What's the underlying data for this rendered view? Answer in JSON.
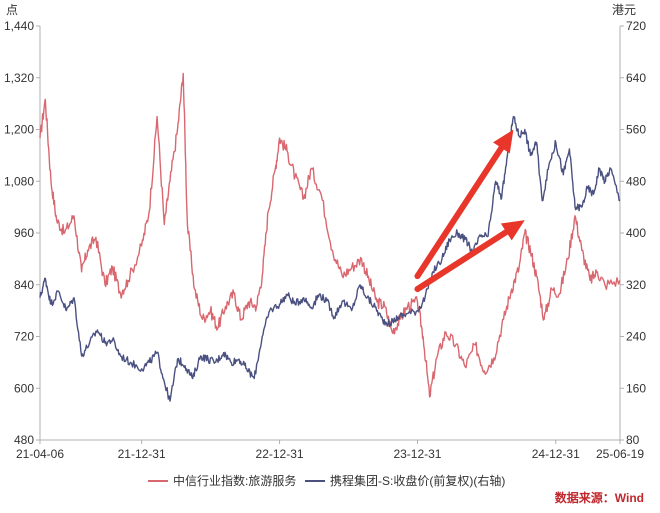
{
  "chart_data": {
    "type": "line",
    "left_axis": {
      "unit": "点",
      "ylim": [
        480,
        1440
      ],
      "ticks": [
        "480",
        "600",
        "720",
        "840",
        "960",
        "1,080",
        "1,200",
        "1,320",
        "1,440"
      ]
    },
    "right_axis": {
      "unit": "港元",
      "ylim": [
        80,
        720
      ],
      "ticks": [
        "80",
        "160",
        "240",
        "320",
        "400",
        "480",
        "560",
        "640",
        "720"
      ]
    },
    "x_ticks": [
      "21-04-06",
      "21-12-31",
      "22-12-31",
      "23-12-31",
      "24-12-31",
      "25-06-19"
    ],
    "x_tick_dates": [
      "2021-04-06",
      "2021-12-31",
      "2022-12-31",
      "2023-12-31",
      "2024-12-31",
      "2025-06-19"
    ],
    "series": [
      {
        "name": "中信行业指数:旅游服务",
        "axis": "left",
        "color": "#d9676f",
        "points": [
          [
            "2021-04-06",
            1180
          ],
          [
            "2021-04-20",
            1270
          ],
          [
            "2021-05-05",
            1080
          ],
          [
            "2021-05-20",
            990
          ],
          [
            "2021-06-10",
            960
          ],
          [
            "2021-07-05",
            1000
          ],
          [
            "2021-07-25",
            870
          ],
          [
            "2021-08-10",
            920
          ],
          [
            "2021-09-01",
            950
          ],
          [
            "2021-09-25",
            840
          ],
          [
            "2021-10-15",
            880
          ],
          [
            "2021-11-05",
            820
          ],
          [
            "2021-11-25",
            850
          ],
          [
            "2021-12-31",
            930
          ],
          [
            "2022-01-20",
            1010
          ],
          [
            "2022-02-10",
            1230
          ],
          [
            "2022-03-01",
            980
          ],
          [
            "2022-03-16",
            1080
          ],
          [
            "2022-04-05",
            1200
          ],
          [
            "2022-04-20",
            1330
          ],
          [
            "2022-05-01",
            980
          ],
          [
            "2022-05-20",
            830
          ],
          [
            "2022-06-10",
            760
          ],
          [
            "2022-07-01",
            780
          ],
          [
            "2022-07-20",
            740
          ],
          [
            "2022-08-10",
            790
          ],
          [
            "2022-09-01",
            820
          ],
          [
            "2022-09-20",
            760
          ],
          [
            "2022-10-10",
            800
          ],
          [
            "2022-10-31",
            790
          ],
          [
            "2022-11-15",
            860
          ],
          [
            "2022-12-01",
            1010
          ],
          [
            "2022-12-20",
            1110
          ],
          [
            "2022-12-31",
            1180
          ],
          [
            "2023-01-20",
            1150
          ],
          [
            "2023-02-10",
            1090
          ],
          [
            "2023-03-05",
            1040
          ],
          [
            "2023-03-25",
            1110
          ],
          [
            "2023-04-20",
            1050
          ],
          [
            "2023-05-20",
            920
          ],
          [
            "2023-06-15",
            860
          ],
          [
            "2023-07-10",
            880
          ],
          [
            "2023-08-05",
            900
          ],
          [
            "2023-08-25",
            850
          ],
          [
            "2023-09-15",
            800
          ],
          [
            "2023-10-05",
            790
          ],
          [
            "2023-10-25",
            730
          ],
          [
            "2023-11-15",
            760
          ],
          [
            "2023-12-05",
            790
          ],
          [
            "2023-12-31",
            800
          ],
          [
            "2024-01-15",
            720
          ],
          [
            "2024-02-01",
            580
          ],
          [
            "2024-02-20",
            670
          ],
          [
            "2024-03-15",
            730
          ],
          [
            "2024-04-10",
            700
          ],
          [
            "2024-05-05",
            650
          ],
          [
            "2024-06-01",
            700
          ],
          [
            "2024-06-25",
            640
          ],
          [
            "2024-07-20",
            670
          ],
          [
            "2024-08-15",
            760
          ],
          [
            "2024-09-05",
            830
          ],
          [
            "2024-09-25",
            880
          ],
          [
            "2024-10-10",
            960
          ],
          [
            "2024-10-25",
            920
          ],
          [
            "2024-11-10",
            860
          ],
          [
            "2024-11-30",
            760
          ],
          [
            "2024-12-20",
            830
          ],
          [
            "2025-01-10",
            820
          ],
          [
            "2025-02-01",
            900
          ],
          [
            "2025-02-20",
            1000
          ],
          [
            "2025-03-10",
            920
          ],
          [
            "2025-04-01",
            850
          ],
          [
            "2025-04-20",
            870
          ],
          [
            "2025-05-10",
            840
          ],
          [
            "2025-06-19",
            850
          ]
        ]
      },
      {
        "name": "携程集团-S:收盘价(前复权)(右轴)",
        "axis": "right",
        "color": "#4a5080",
        "points": [
          [
            "2021-04-06",
            300
          ],
          [
            "2021-04-20",
            330
          ],
          [
            "2021-05-05",
            290
          ],
          [
            "2021-05-25",
            310
          ],
          [
            "2021-06-15",
            280
          ],
          [
            "2021-07-05",
            300
          ],
          [
            "2021-07-25",
            210
          ],
          [
            "2021-08-15",
            230
          ],
          [
            "2021-09-05",
            250
          ],
          [
            "2021-09-25",
            230
          ],
          [
            "2021-10-15",
            235
          ],
          [
            "2021-11-05",
            210
          ],
          [
            "2021-12-01",
            200
          ],
          [
            "2021-12-31",
            190
          ],
          [
            "2022-01-20",
            200
          ],
          [
            "2022-02-10",
            215
          ],
          [
            "2022-03-01",
            170
          ],
          [
            "2022-03-16",
            140
          ],
          [
            "2022-04-05",
            205
          ],
          [
            "2022-04-25",
            195
          ],
          [
            "2022-05-15",
            175
          ],
          [
            "2022-06-05",
            210
          ],
          [
            "2022-06-25",
            205
          ],
          [
            "2022-07-15",
            200
          ],
          [
            "2022-08-05",
            215
          ],
          [
            "2022-08-25",
            200
          ],
          [
            "2022-09-15",
            205
          ],
          [
            "2022-10-05",
            190
          ],
          [
            "2022-10-25",
            175
          ],
          [
            "2022-11-15",
            240
          ],
          [
            "2022-12-05",
            280
          ],
          [
            "2022-12-31",
            290
          ],
          [
            "2023-01-20",
            305
          ],
          [
            "2023-02-10",
            290
          ],
          [
            "2023-03-05",
            300
          ],
          [
            "2023-03-25",
            285
          ],
          [
            "2023-04-15",
            305
          ],
          [
            "2023-05-05",
            295
          ],
          [
            "2023-05-25",
            270
          ],
          [
            "2023-06-15",
            295
          ],
          [
            "2023-07-10",
            280
          ],
          [
            "2023-08-01",
            320
          ],
          [
            "2023-08-20",
            300
          ],
          [
            "2023-09-10",
            285
          ],
          [
            "2023-09-30",
            265
          ],
          [
            "2023-10-20",
            260
          ],
          [
            "2023-11-10",
            270
          ],
          [
            "2023-12-01",
            275
          ],
          [
            "2023-12-31",
            280
          ],
          [
            "2024-01-20",
            300
          ],
          [
            "2024-02-10",
            340
          ],
          [
            "2024-03-05",
            360
          ],
          [
            "2024-03-25",
            390
          ],
          [
            "2024-04-15",
            400
          ],
          [
            "2024-05-05",
            390
          ],
          [
            "2024-05-25",
            370
          ],
          [
            "2024-06-15",
            395
          ],
          [
            "2024-07-05",
            395
          ],
          [
            "2024-07-25",
            480
          ],
          [
            "2024-08-10",
            455
          ],
          [
            "2024-08-25",
            520
          ],
          [
            "2024-09-10",
            580
          ],
          [
            "2024-09-25",
            550
          ],
          [
            "2024-10-10",
            560
          ],
          [
            "2024-10-25",
            520
          ],
          [
            "2024-11-10",
            540
          ],
          [
            "2024-11-25",
            450
          ],
          [
            "2024-12-15",
            510
          ],
          [
            "2024-12-31",
            540
          ],
          [
            "2025-01-20",
            490
          ],
          [
            "2025-02-05",
            530
          ],
          [
            "2025-02-20",
            440
          ],
          [
            "2025-03-10",
            440
          ],
          [
            "2025-03-25",
            470
          ],
          [
            "2025-04-10",
            460
          ],
          [
            "2025-04-25",
            500
          ],
          [
            "2025-05-10",
            480
          ],
          [
            "2025-05-25",
            500
          ],
          [
            "2025-06-19",
            450
          ]
        ]
      }
    ],
    "annotations": [
      {
        "type": "arrow",
        "color": "#e8362a",
        "from": [
          "2023-12-31",
          860
        ],
        "to": [
          "2024-09-10",
          1200
        ],
        "axis": "left"
      },
      {
        "type": "arrow",
        "color": "#e8362a",
        "from": [
          "2023-12-31",
          830
        ],
        "to": [
          "2024-10-10",
          990
        ],
        "axis": "left"
      }
    ],
    "grid": false,
    "legend_position": "bottom"
  },
  "source_note": "数据来源：Wind"
}
